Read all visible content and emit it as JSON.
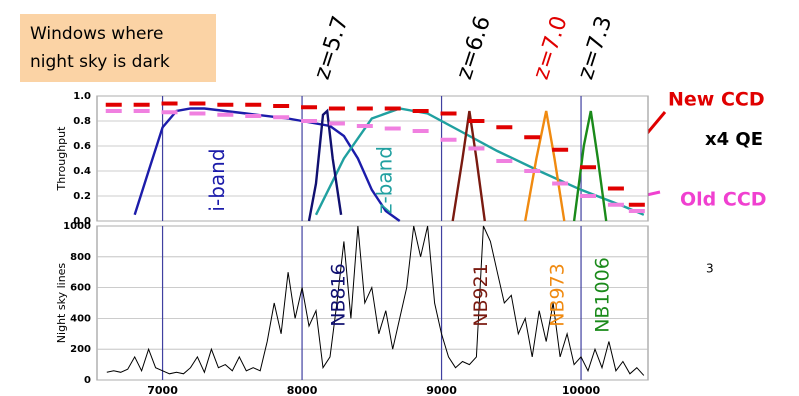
{
  "box_lines": [
    "Windows where",
    "night sky is dark"
  ],
  "redshift_labels": [
    {
      "text": "z=5.7",
      "color": "#000000",
      "x": 8180
    },
    {
      "text": "z=6.6",
      "color": "#000000",
      "x": 9200
    },
    {
      "text": "z=7.0",
      "color": "#e00000",
      "x": 9750
    },
    {
      "text": "z=7.3",
      "color": "#000000",
      "x": 10070
    }
  ],
  "annotations": {
    "qe": "x4 QE",
    "page": "3"
  },
  "chart_data": [
    {
      "type": "line",
      "y_label": "Throughput",
      "xlim": [
        6530,
        10480
      ],
      "ylim": [
        0,
        1.0
      ],
      "yticks": [
        {
          "value": 0,
          "label": "0.0"
        },
        0.2,
        0.4,
        0.6,
        0.8,
        {
          "value": 1.0,
          "label": "1.0"
        }
      ],
      "grid": true,
      "series": [
        {
          "name": "i-band",
          "color": "#1c1caa",
          "label_x": 7400,
          "x": [
            6800,
            6900,
            7000,
            7100,
            7200,
            7300,
            7600,
            7900,
            8200,
            8300,
            8400,
            8500,
            8600,
            8700
          ],
          "values": [
            0.05,
            0.4,
            0.75,
            0.88,
            0.9,
            0.9,
            0.86,
            0.82,
            0.76,
            0.68,
            0.5,
            0.25,
            0.08,
            0.0
          ]
        },
        {
          "name": "z-band",
          "color": "#20a0a0",
          "label_x": 8600,
          "x": [
            8100,
            8300,
            8500,
            8700,
            8900,
            9100,
            9400,
            9700,
            10000,
            10300,
            10450
          ],
          "values": [
            0.05,
            0.5,
            0.82,
            0.9,
            0.86,
            0.74,
            0.56,
            0.4,
            0.25,
            0.12,
            0.05
          ]
        },
        {
          "name": "NB816",
          "color": "#101070",
          "label_x": 8180,
          "x": [
            8050,
            8100,
            8150,
            8180,
            8220,
            8280
          ],
          "values": [
            0,
            0.3,
            0.85,
            0.88,
            0.5,
            0.05
          ]
        },
        {
          "name": "NB921",
          "color": "#7a1a10",
          "label_x": 9200,
          "x": [
            9080,
            9150,
            9200,
            9250,
            9310
          ],
          "values": [
            0,
            0.5,
            0.88,
            0.5,
            0
          ]
        },
        {
          "name": "NB973",
          "color": "#f08a10",
          "label_x": 9750,
          "x": [
            9600,
            9680,
            9750,
            9810,
            9880
          ],
          "values": [
            0,
            0.5,
            0.88,
            0.5,
            0
          ]
        },
        {
          "name": "NB1006",
          "color": "#1a8a1a",
          "label_x": 10070,
          "x": [
            9950,
            10020,
            10070,
            10120,
            10180
          ],
          "values": [
            0,
            0.6,
            0.88,
            0.5,
            0
          ]
        },
        {
          "name": "New CCD",
          "style": "dash",
          "color": "#e00000",
          "x": [
            6650,
            6850,
            7050,
            7250,
            7450,
            7650,
            7850,
            8050,
            8250,
            8450,
            8650,
            8850,
            9050,
            9250,
            9450,
            9650,
            9850,
            10050,
            10250,
            10400
          ],
          "values": [
            0.93,
            0.93,
            0.94,
            0.94,
            0.93,
            0.93,
            0.92,
            0.91,
            0.9,
            0.9,
            0.9,
            0.88,
            0.86,
            0.8,
            0.75,
            0.67,
            0.57,
            0.43,
            0.26,
            0.13
          ]
        },
        {
          "name": "Old CCD",
          "style": "dash",
          "color": "#f080e0",
          "x": [
            6650,
            6850,
            7050,
            7250,
            7450,
            7650,
            7850,
            8050,
            8250,
            8450,
            8650,
            8850,
            9050,
            9250,
            9450,
            9650,
            9850,
            10050,
            10250,
            10400
          ],
          "values": [
            0.88,
            0.88,
            0.87,
            0.86,
            0.85,
            0.84,
            0.83,
            0.8,
            0.78,
            0.76,
            0.74,
            0.72,
            0.65,
            0.58,
            0.48,
            0.4,
            0.3,
            0.2,
            0.13,
            0.08
          ]
        }
      ]
    },
    {
      "type": "line",
      "y_label": "Night sky lines",
      "xlim": [
        6530,
        10480
      ],
      "ylim": [
        0,
        1000
      ],
      "xticks": [
        7000,
        8000,
        9000,
        10000
      ],
      "yticks": [
        0,
        200,
        400,
        600,
        800,
        1000
      ],
      "grid": true,
      "series": [
        {
          "color": "#000000",
          "x": [
            6600,
            6650,
            6700,
            6750,
            6800,
            6850,
            6900,
            6950,
            7000,
            7050,
            7100,
            7150,
            7200,
            7250,
            7300,
            7350,
            7400,
            7450,
            7500,
            7550,
            7600,
            7650,
            7700,
            7750,
            7800,
            7850,
            7900,
            7950,
            8000,
            8050,
            8100,
            8150,
            8200,
            8250,
            8300,
            8350,
            8400,
            8450,
            8500,
            8550,
            8600,
            8650,
            8700,
            8750,
            8800,
            8850,
            8900,
            8950,
            9000,
            9050,
            9100,
            9150,
            9200,
            9250,
            9300,
            9350,
            9400,
            9450,
            9500,
            9550,
            9600,
            9650,
            9700,
            9750,
            9800,
            9850,
            9900,
            9950,
            10000,
            10050,
            10100,
            10150,
            10200,
            10250,
            10300,
            10350,
            10400,
            10450
          ],
          "values": [
            50,
            60,
            50,
            70,
            150,
            60,
            200,
            80,
            60,
            40,
            50,
            40,
            80,
            150,
            50,
            200,
            80,
            100,
            60,
            150,
            60,
            80,
            60,
            250,
            500,
            300,
            700,
            400,
            600,
            350,
            450,
            80,
            150,
            500,
            900,
            400,
            1000,
            500,
            600,
            300,
            450,
            200,
            400,
            600,
            1000,
            800,
            1000,
            500,
            300,
            150,
            80,
            120,
            100,
            150,
            1000,
            900,
            700,
            500,
            550,
            300,
            400,
            150,
            450,
            250,
            500,
            150,
            300,
            100,
            150,
            60,
            200,
            80,
            250,
            60,
            120,
            40,
            80,
            30
          ]
        }
      ]
    }
  ]
}
